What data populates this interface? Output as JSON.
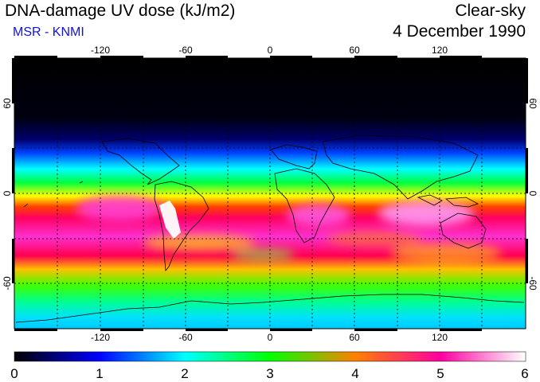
{
  "header": {
    "title": "DNA-damage UV dose (kJ/m2)",
    "subtitle": "MSR - KNMI",
    "condition": "Clear-sky",
    "date": "4 December 1990"
  },
  "map": {
    "longitude_ticks": [
      "-120",
      "-60",
      "0",
      "60",
      "120"
    ],
    "latitude_ticks": [
      "60",
      "0",
      "-60"
    ]
  },
  "colorbar": {
    "tick_labels": [
      "0",
      "1",
      "2",
      "3",
      "4",
      "5",
      "6"
    ],
    "min": 0,
    "max": 6
  }
}
